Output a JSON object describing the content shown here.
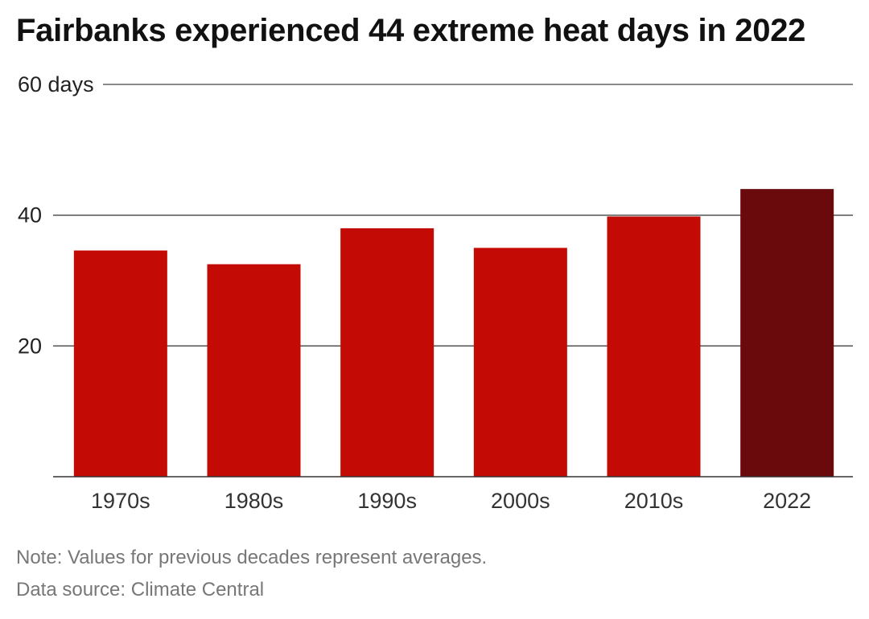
{
  "chart_data": {
    "type": "bar",
    "title": "Fairbanks experienced 44 extreme heat days in 2022",
    "categories": [
      "1970s",
      "1980s",
      "1990s",
      "2000s",
      "2010s",
      "2022"
    ],
    "values": [
      34.6,
      32.5,
      38.0,
      35.0,
      39.8,
      44.0
    ],
    "ylim": [
      0,
      60
    ],
    "yticks": [
      {
        "value": 20,
        "label": "20"
      },
      {
        "value": 40,
        "label": "40"
      },
      {
        "value": 60,
        "label": "60 days"
      }
    ],
    "grid": true,
    "colors": {
      "decade_bar": "#c30a05",
      "highlight_bar": "#6b0a0c",
      "gridline": "#333333"
    },
    "highlight_category": "2022"
  },
  "footer": {
    "note": "Note: Values for previous decades represent averages.",
    "source": "Data source: Climate Central"
  }
}
